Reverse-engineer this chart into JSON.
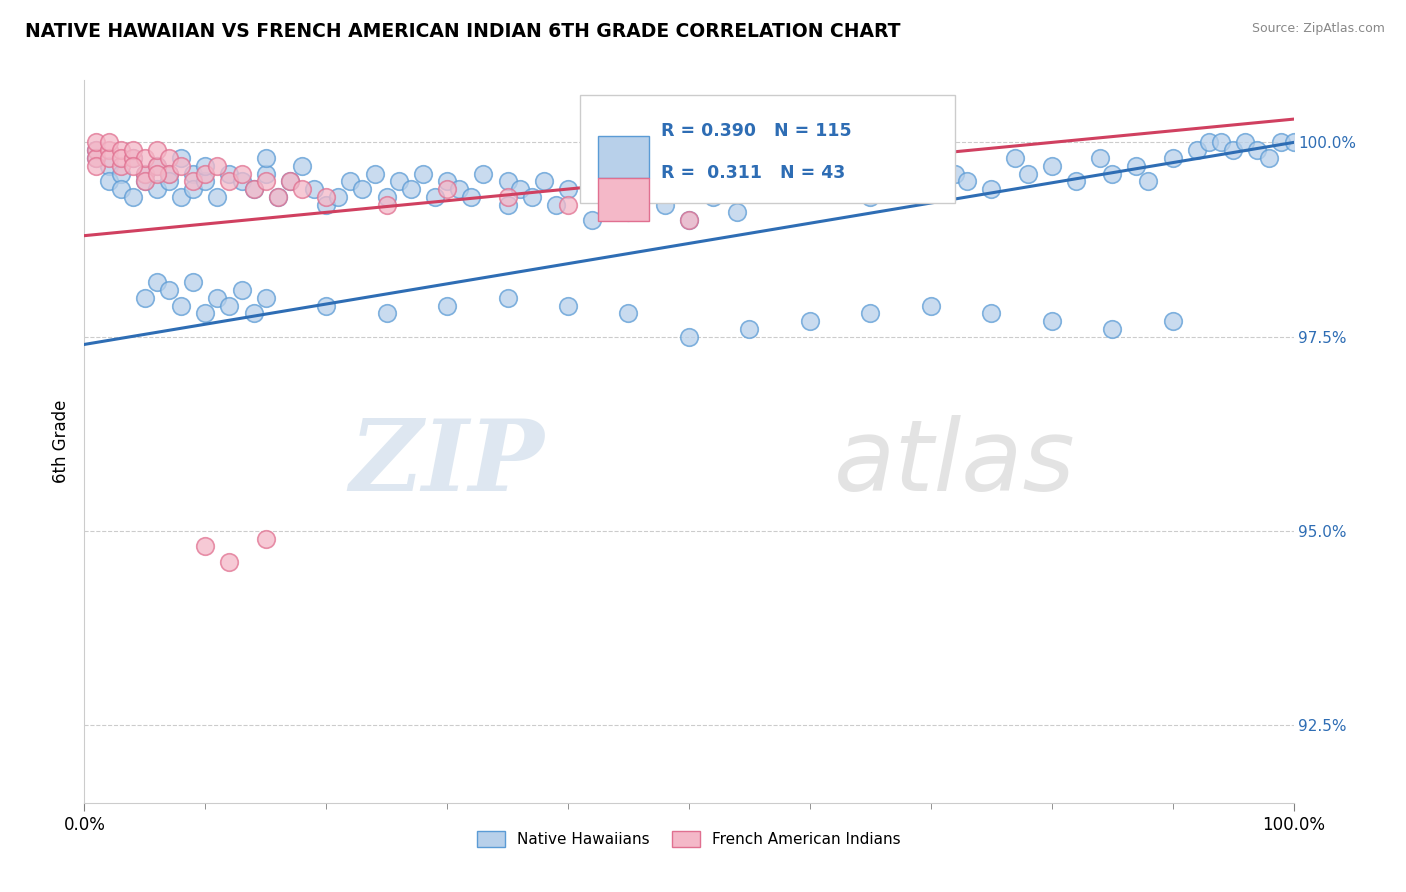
{
  "title": "NATIVE HAWAIIAN VS FRENCH AMERICAN INDIAN 6TH GRADE CORRELATION CHART",
  "source_text": "Source: ZipAtlas.com",
  "ylabel": "6th Grade",
  "watermark_zip": "ZIP",
  "watermark_atlas": "atlas",
  "xmin": 0.0,
  "xmax": 100.0,
  "ymin": 91.5,
  "ymax": 100.8,
  "yticks": [
    92.5,
    95.0,
    97.5,
    100.0
  ],
  "ytick_labels": [
    "92.5%",
    "95.0%",
    "97.5%",
    "100.0%"
  ],
  "xtick_labels": [
    "0.0%",
    "100.0%"
  ],
  "blue_color": "#b8d0ea",
  "blue_edge_color": "#5b9bd5",
  "pink_color": "#f4b8c8",
  "pink_edge_color": "#e07090",
  "blue_line_color": "#2e6db4",
  "pink_line_color": "#d04060",
  "R_blue": 0.39,
  "N_blue": 115,
  "R_pink": 0.311,
  "N_pink": 43,
  "legend_blue_label": "Native Hawaiians",
  "legend_pink_label": "French American Indians",
  "blue_line_x0": 0.0,
  "blue_line_y0": 97.4,
  "blue_line_x1": 100.0,
  "blue_line_y1": 100.0,
  "pink_line_x0": 0.0,
  "pink_line_y0": 98.8,
  "pink_line_x1": 100.0,
  "pink_line_y1": 100.3,
  "blue_points_x": [
    1,
    1,
    2,
    2,
    3,
    3,
    4,
    4,
    5,
    5,
    6,
    6,
    7,
    7,
    8,
    8,
    9,
    9,
    10,
    10,
    11,
    12,
    13,
    14,
    15,
    15,
    16,
    17,
    18,
    19,
    20,
    21,
    22,
    23,
    24,
    25,
    26,
    27,
    28,
    29,
    30,
    31,
    32,
    33,
    35,
    35,
    36,
    37,
    38,
    39,
    40,
    42,
    44,
    45,
    46,
    48,
    50,
    52,
    54,
    55,
    58,
    60,
    62,
    64,
    65,
    67,
    68,
    70,
    72,
    73,
    75,
    77,
    78,
    80,
    82,
    84,
    85,
    87,
    88,
    90,
    92,
    93,
    94,
    95,
    96,
    97,
    98,
    99,
    100,
    5,
    6,
    7,
    8,
    9,
    10,
    11,
    12,
    13,
    14,
    15,
    20,
    25,
    30,
    35,
    40,
    45,
    50,
    55,
    60,
    65,
    70,
    75,
    80,
    85,
    90
  ],
  "blue_points_y": [
    99.9,
    99.8,
    99.7,
    99.5,
    99.6,
    99.4,
    99.8,
    99.3,
    99.5,
    99.6,
    99.7,
    99.4,
    99.6,
    99.5,
    99.3,
    99.8,
    99.6,
    99.4,
    99.5,
    99.7,
    99.3,
    99.6,
    99.5,
    99.4,
    99.6,
    99.8,
    99.3,
    99.5,
    99.7,
    99.4,
    99.2,
    99.3,
    99.5,
    99.4,
    99.6,
    99.3,
    99.5,
    99.4,
    99.6,
    99.3,
    99.5,
    99.4,
    99.3,
    99.6,
    99.5,
    99.2,
    99.4,
    99.3,
    99.5,
    99.2,
    99.4,
    99.0,
    99.3,
    99.1,
    99.4,
    99.2,
    99.0,
    99.3,
    99.1,
    99.4,
    99.5,
    99.6,
    99.7,
    99.5,
    99.3,
    99.8,
    100.0,
    99.7,
    99.6,
    99.5,
    99.4,
    99.8,
    99.6,
    99.7,
    99.5,
    99.8,
    99.6,
    99.7,
    99.5,
    99.8,
    99.9,
    100.0,
    100.0,
    99.9,
    100.0,
    99.9,
    99.8,
    100.0,
    100.0,
    98.0,
    98.2,
    98.1,
    97.9,
    98.2,
    97.8,
    98.0,
    97.9,
    98.1,
    97.8,
    98.0,
    97.9,
    97.8,
    97.9,
    98.0,
    97.9,
    97.8,
    97.5,
    97.6,
    97.7,
    97.8,
    97.9,
    97.8,
    97.7,
    97.6,
    97.7
  ],
  "pink_points_x": [
    1,
    1,
    1,
    1,
    2,
    2,
    2,
    3,
    3,
    3,
    4,
    4,
    5,
    5,
    6,
    6,
    7,
    7,
    8,
    9,
    10,
    11,
    12,
    13,
    14,
    15,
    16,
    17,
    18,
    4,
    5,
    6,
    20,
    25,
    30,
    35,
    40,
    50,
    60,
    70,
    10,
    12,
    15
  ],
  "pink_points_y": [
    99.9,
    99.8,
    100.0,
    99.7,
    99.9,
    99.8,
    100.0,
    99.7,
    99.9,
    99.8,
    99.8,
    99.9,
    99.6,
    99.8,
    99.7,
    99.9,
    99.8,
    99.6,
    99.7,
    99.5,
    99.6,
    99.7,
    99.5,
    99.6,
    99.4,
    99.5,
    99.3,
    99.5,
    99.4,
    99.7,
    99.5,
    99.6,
    99.3,
    99.2,
    99.4,
    99.3,
    99.2,
    99.0,
    99.5,
    99.6,
    94.8,
    94.6,
    94.9
  ]
}
